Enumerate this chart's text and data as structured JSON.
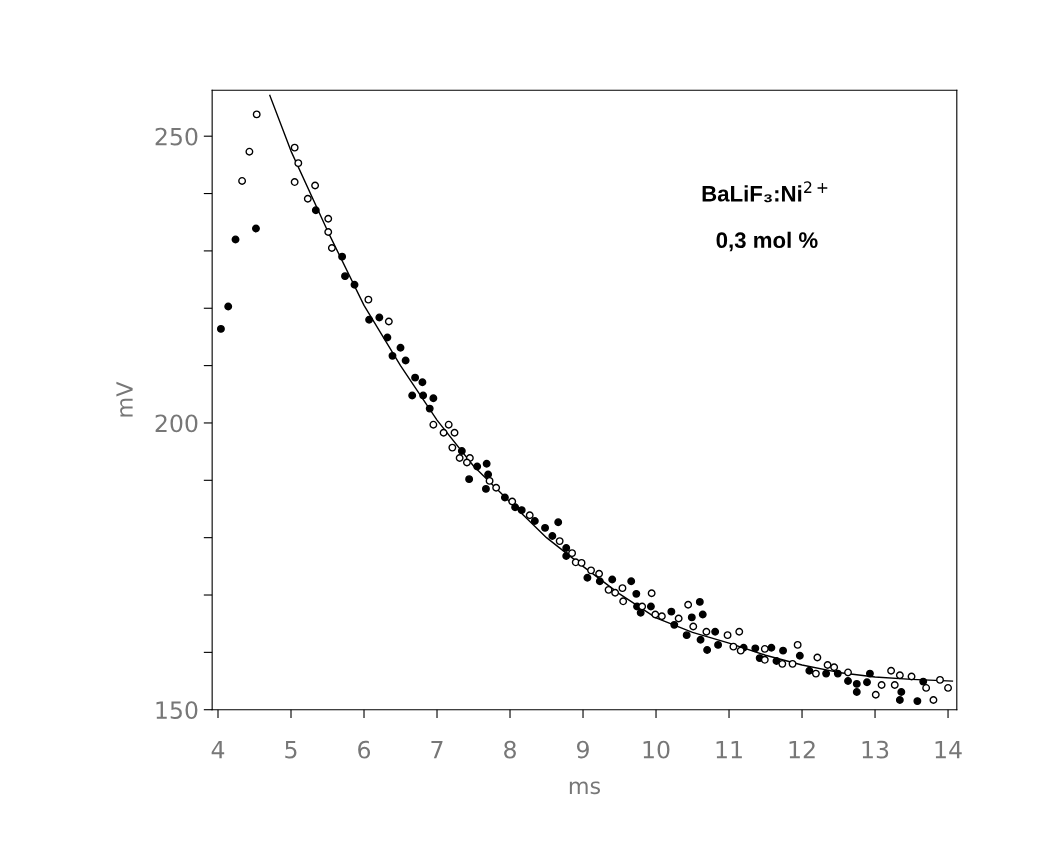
{
  "chart_data": {
    "type": "scatter",
    "xlabel": "ms",
    "ylabel": "mV",
    "annotations": [
      "BaLiF₃:Ni$^{2+}$",
      "0,3 mol %"
    ],
    "xlim": [
      3.92,
      14.12
    ],
    "xticks": [
      4,
      5,
      6,
      7,
      8,
      9,
      10,
      11,
      12,
      13,
      14
    ],
    "ylim": [
      150,
      258
    ],
    "yticks": [
      150,
      {
        "value": 160,
        "label": null
      },
      {
        "value": 170,
        "label": null
      },
      {
        "value": 180,
        "label": null
      },
      {
        "value": 190,
        "label": null
      },
      200,
      {
        "value": 210,
        "label": null
      },
      {
        "value": 220,
        "label": null
      },
      {
        "value": 230,
        "label": null
      },
      {
        "value": 240,
        "label": null
      },
      250
    ],
    "grid": false,
    "legend": false,
    "marker": "circle",
    "series": [
      {
        "color": "#000000",
        "x": [
          4.04,
          4.14,
          4.24,
          4.52,
          5.34,
          5.7,
          5.74,
          5.87,
          6.07,
          6.21,
          6.32,
          6.5,
          6.39,
          6.57,
          6.7,
          6.8,
          6.66,
          6.81,
          6.95,
          6.9,
          7.34,
          7.55,
          7.68,
          7.7,
          7.44,
          7.67,
          7.93,
          8.07,
          8.16,
          8.34,
          8.48,
          8.66,
          8.58,
          8.77,
          8.77,
          9.06,
          9.23,
          9.4,
          9.66,
          9.73,
          9.74,
          9.93,
          9.79,
          10.21,
          10.25,
          10.6,
          10.49,
          10.64,
          10.81,
          10.42,
          10.61,
          10.85,
          10.7,
          11.2,
          11.36,
          11.58,
          11.74,
          11.42,
          11.65,
          11.97,
          12.1,
          12.33,
          12.49,
          12.63,
          12.75,
          12.75,
          12.89,
          12.93,
          13.36,
          13.34,
          13.58,
          13.66
        ],
        "values": [
          216.4,
          220.3,
          232.0,
          233.9,
          237.1,
          229.0,
          225.6,
          224.1,
          218.0,
          218.4,
          214.9,
          213.1,
          211.7,
          210.9,
          207.9,
          207.1,
          204.8,
          204.8,
          204.3,
          202.5,
          195.1,
          192.4,
          192.9,
          191.0,
          190.2,
          188.5,
          187.0,
          185.3,
          184.8,
          182.9,
          181.7,
          182.7,
          180.3,
          178.2,
          176.8,
          173.0,
          172.4,
          172.7,
          172.4,
          170.2,
          168.0,
          168.0,
          166.9,
          167.1,
          164.8,
          168.8,
          166.1,
          166.6,
          163.6,
          163.0,
          162.2,
          161.3,
          160.4,
          160.8,
          160.7,
          160.8,
          160.3,
          159.0,
          158.5,
          159.4,
          156.8,
          156.3,
          156.3,
          155.0,
          154.5,
          153.1,
          154.8,
          156.3,
          153.1,
          151.7,
          151.5,
          154.9
        ]
      },
      {
        "color": "#000000",
        "x": [
          4.33,
          4.43,
          4.53,
          5.05,
          5.1,
          5.05,
          5.33,
          5.23,
          5.51,
          5.51,
          5.56,
          6.06,
          6.34,
          6.95,
          7.16,
          7.09,
          7.24,
          7.21,
          7.31,
          7.45,
          7.41,
          7.72,
          7.81,
          8.03,
          8.27,
          8.68,
          8.85,
          8.9,
          8.98,
          9.11,
          9.22,
          9.35,
          9.44,
          9.54,
          9.55,
          9.94,
          9.81,
          9.99,
          10.08,
          10.31,
          10.44,
          10.51,
          10.69,
          10.98,
          11.14,
          11.06,
          11.16,
          11.49,
          11.94,
          11.49,
          11.73,
          11.87,
          12.21,
          12.19,
          12.35,
          12.44,
          12.63,
          13.01,
          13.09,
          13.22,
          13.27,
          13.34,
          13.5,
          13.7,
          13.8,
          13.89,
          14.0
        ],
        "values": [
          242.2,
          247.3,
          253.8,
          248.0,
          245.3,
          242.0,
          241.4,
          239.1,
          235.6,
          233.3,
          230.5,
          221.5,
          217.7,
          199.7,
          199.7,
          198.3,
          198.3,
          195.7,
          193.9,
          193.9,
          193.1,
          189.9,
          188.7,
          186.3,
          183.9,
          179.4,
          177.3,
          175.7,
          175.6,
          174.3,
          173.7,
          170.9,
          170.4,
          171.2,
          168.9,
          170.3,
          168.0,
          166.6,
          166.3,
          165.9,
          168.3,
          164.5,
          163.6,
          163.0,
          163.6,
          161.0,
          160.3,
          160.6,
          161.3,
          158.7,
          158.0,
          158.0,
          159.1,
          156.3,
          157.8,
          157.4,
          156.5,
          152.6,
          154.3,
          156.8,
          154.3,
          156.0,
          155.8,
          153.8,
          151.7,
          155.2,
          153.8
        ]
      },
      {
        "type": "line",
        "color": "#000000",
        "marker": "none",
        "line_style": "solid",
        "x": [
          4.71,
          5,
          5.5,
          6,
          6.5,
          7,
          7.5,
          8,
          8.5,
          9,
          9.5,
          10,
          10.5,
          11,
          11.5,
          12,
          12.5,
          13,
          13.5,
          14.06
        ],
        "values": [
          257.1,
          247.4,
          233.5,
          220.5,
          210,
          200.5,
          192.5,
          186.2,
          180,
          175,
          170.2,
          166,
          163.5,
          161.6,
          159.5,
          157.8,
          156.5,
          155.7,
          155.3,
          155.0
        ]
      }
    ]
  }
}
